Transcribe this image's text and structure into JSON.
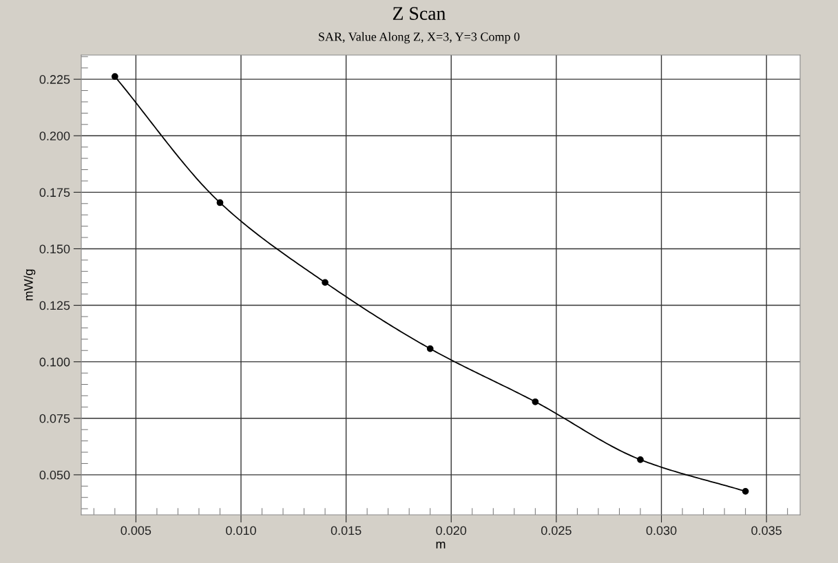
{
  "chart_data": {
    "type": "line",
    "title": "Z Scan",
    "subtitle": "SAR, Value Along Z, X=3, Y=3 Comp 0",
    "xlabel": "m",
    "ylabel": "mW/g",
    "x": [
      0.004,
      0.009,
      0.014,
      0.019,
      0.024,
      0.029,
      0.034
    ],
    "series": [
      {
        "color": "#000000",
        "values": [
          0.2262,
          0.1704,
          0.1351,
          0.1058,
          0.0823,
          0.0567,
          0.0427
        ]
      }
    ],
    "xlim": [
      0.0024,
      0.0366
    ],
    "ylim": [
      0.0323,
      0.2357
    ],
    "xticks": [
      {
        "value": 0.005,
        "label": "0.005"
      },
      {
        "value": 0.01,
        "label": "0.010"
      },
      {
        "value": 0.015,
        "label": "0.015"
      },
      {
        "value": 0.02,
        "label": "0.020"
      },
      {
        "value": 0.025,
        "label": "0.025"
      },
      {
        "value": 0.03,
        "label": "0.030"
      },
      {
        "value": 0.035,
        "label": "0.035"
      }
    ],
    "yticks": [
      {
        "value": 0.05,
        "label": "0.050"
      },
      {
        "value": 0.075,
        "label": "0.075"
      },
      {
        "value": 0.1,
        "label": "0.100"
      },
      {
        "value": 0.125,
        "label": "0.125"
      },
      {
        "value": 0.15,
        "label": "0.150"
      },
      {
        "value": 0.175,
        "label": "0.175"
      },
      {
        "value": 0.2,
        "label": "0.200"
      },
      {
        "value": 0.225,
        "label": "0.225"
      }
    ],
    "grid": true,
    "marker": "circle",
    "line_style": "solid",
    "legend": false
  }
}
